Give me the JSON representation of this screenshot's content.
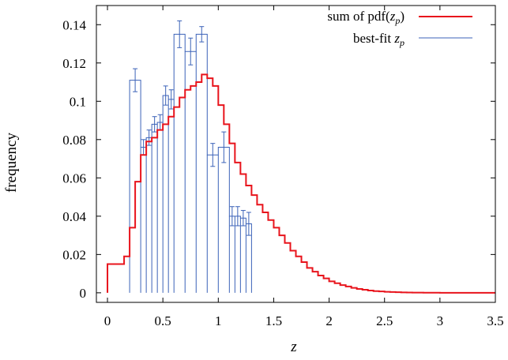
{
  "chart_data": {
    "type": "line",
    "xlabel": "z",
    "ylabel": "frequency",
    "xlim": [
      -0.1,
      3.5
    ],
    "ylim": [
      -0.005,
      0.15
    ],
    "x_ticks": [
      0,
      0.5,
      1,
      1.5,
      2,
      2.5,
      3,
      3.5
    ],
    "x_tick_labels": [
      "0",
      "0.5",
      "1",
      "1.5",
      "2",
      "2.5",
      "3",
      "3.5"
    ],
    "y_ticks": [
      0,
      0.02,
      0.04,
      0.06,
      0.08,
      0.1,
      0.12,
      0.14
    ],
    "y_tick_labels": [
      "0",
      "0.02",
      "0.04",
      "0.06",
      "0.08",
      "0.1",
      "0.12",
      "0.14"
    ],
    "legend_position": "top-right",
    "colors": {
      "pdf_sum": "#e8141c",
      "best_fit": "#3b62b8"
    },
    "series": [
      {
        "name_text": "sum of pdf(",
        "name_sub_main": "z",
        "name_sub": "p",
        "name_close": ")",
        "style": "step",
        "bin_width": 0.05,
        "x_start": 0,
        "values": [
          0.015,
          0.015,
          0.015,
          0.019,
          0.034,
          0.058,
          0.072,
          0.079,
          0.081,
          0.085,
          0.088,
          0.092,
          0.097,
          0.102,
          0.106,
          0.108,
          0.11,
          0.114,
          0.112,
          0.108,
          0.098,
          0.088,
          0.078,
          0.068,
          0.062,
          0.056,
          0.051,
          0.046,
          0.042,
          0.038,
          0.034,
          0.03,
          0.026,
          0.022,
          0.019,
          0.016,
          0.013,
          0.011,
          0.009,
          0.0075,
          0.006,
          0.005,
          0.004,
          0.0033,
          0.0026,
          0.002,
          0.0016,
          0.0012,
          0.0009,
          0.0007,
          0.0005,
          0.0004,
          0.0003,
          0.0002,
          0.00015,
          0.0001,
          8e-05,
          5e-05,
          4e-05,
          3e-05,
          2e-05,
          1e-05,
          1e-05,
          1e-05,
          0,
          0,
          0,
          0,
          0,
          0
        ]
      },
      {
        "name_text": "best-fit ",
        "name_sub_main": "z",
        "name_sub": "p",
        "style": "histogram",
        "bin_edges": [
          0.2,
          0.3,
          0.35,
          0.4,
          0.45,
          0.5,
          0.55,
          0.6,
          0.7,
          0.8,
          0.9,
          1.0,
          1.1,
          1.15,
          1.2,
          1.25,
          1.3
        ],
        "values": [
          0.111,
          0.076,
          0.081,
          0.088,
          0.089,
          0.103,
          0.101,
          0.135,
          0.126,
          0.135,
          0.072,
          0.076,
          0.04,
          0.04,
          0.039,
          0.036
        ],
        "errors": [
          0.006,
          0.004,
          0.004,
          0.004,
          0.004,
          0.005,
          0.005,
          0.007,
          0.007,
          0.004,
          0.006,
          0.008,
          0.005,
          0.005,
          0.004,
          0.006
        ]
      }
    ]
  }
}
